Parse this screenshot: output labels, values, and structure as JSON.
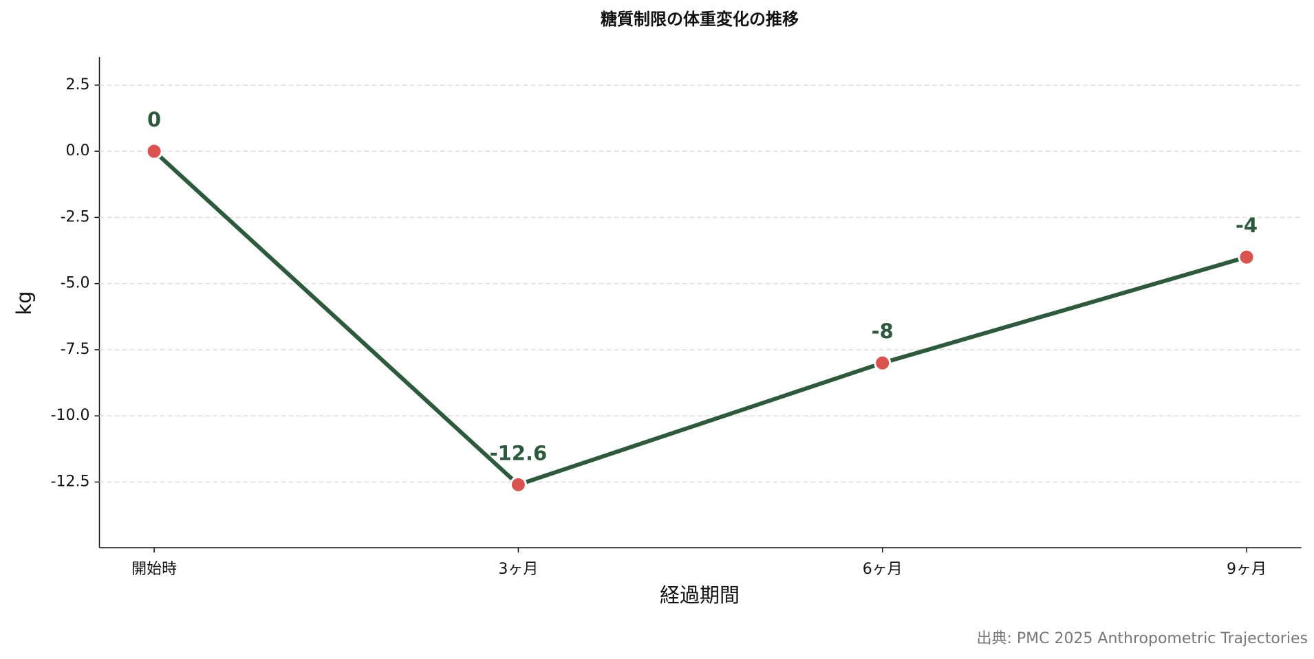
{
  "chart_data": {
    "type": "line",
    "title": "糖質制限の体重変化の推移",
    "x_label": "経過期間",
    "y_label": "kg",
    "source": "出典: PMC 2025 Anthropometric Trajectories",
    "categories": [
      "開始時",
      "3ヶ月",
      "6ヶ月",
      "9ヶ月"
    ],
    "values": [
      0,
      -12.6,
      -8,
      -4
    ],
    "line_color": "#2d5a3d",
    "marker_color": "#d9534f",
    "ylim": [
      -14.98,
      3.56
    ],
    "yticks": [
      2.5,
      {
        "value": 0,
        "label": "0.0"
      },
      -2.5,
      {
        "value": -5,
        "label": "-5.0"
      },
      -7.5,
      {
        "value": -10,
        "label": "-10.0"
      },
      -12.5
    ],
    "grid": true
  }
}
